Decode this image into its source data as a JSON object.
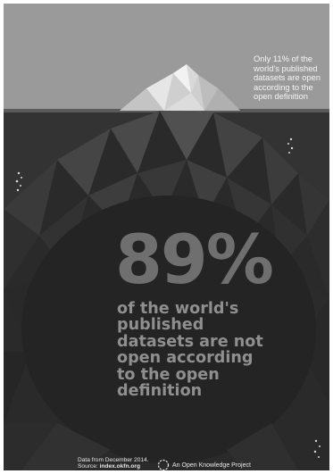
{
  "tip_caption": "Only 11% of the\nworld's published\ndatasets are open\naccording to the\nopen definition",
  "big_percent": "89%",
  "main_statement": "of the world's\npublished\ndatasets are not\nopen according\nto the open\ndefinition",
  "footer": {
    "data_line": "Data from December 2014.",
    "source_prefix": "Source: ",
    "source_link": "index.okfn.org",
    "organization": "An Open Knowledge Project"
  },
  "colors": {
    "sky": "#9a9a9a",
    "water": "#2e2e2e",
    "tip_light": "#e6e6e6",
    "berry_dark": "#242424",
    "percent_text": "#6f6f6f",
    "statement_text": "#8f8f8f"
  },
  "icons": {
    "logo": "open-knowledge-logo-icon",
    "splashes": "water-splash-icon"
  }
}
